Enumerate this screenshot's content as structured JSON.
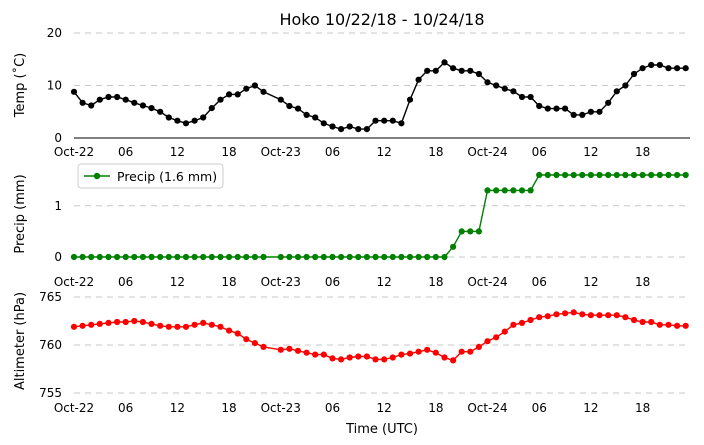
{
  "chart_data": [
    {
      "type": "line",
      "title": "Hoko 10/22/18 - 10/24/18",
      "ylabel": "Temp ($^\\circ$C)",
      "ylabel_display": "Temp (˚C)",
      "ylim": [
        0,
        20
      ],
      "yticks": [
        0,
        10,
        20
      ],
      "xtick_labels": [
        "Oct-22",
        "06",
        "12",
        "18",
        "Oct-23",
        "06",
        "12",
        "18",
        "Oct-24",
        "06",
        "12",
        "18"
      ],
      "grid": "horizontal dashed",
      "series": [
        {
          "color": "#000000",
          "x_hours": [
            0,
            1,
            2,
            3,
            4,
            5,
            6,
            7,
            8,
            9,
            10,
            11,
            12,
            13,
            14,
            15,
            16,
            17,
            18,
            19,
            20,
            21,
            22,
            24,
            25,
            26,
            27,
            28,
            29,
            30,
            31,
            32,
            33,
            34,
            35,
            36,
            37,
            38,
            39,
            40,
            41,
            42,
            43,
            44,
            45,
            46,
            47,
            48,
            49,
            50,
            51,
            52,
            53,
            54,
            55,
            56,
            57,
            58,
            59,
            60,
            61,
            62,
            63,
            64,
            65,
            66,
            67,
            68,
            69,
            70,
            71
          ],
          "values": [
            8.8,
            6.7,
            6.2,
            7.3,
            7.8,
            7.8,
            7.3,
            6.7,
            6.2,
            5.7,
            5.0,
            3.9,
            3.3,
            2.8,
            3.3,
            3.9,
            5.7,
            7.3,
            8.3,
            8.3,
            9.4,
            10.0,
            8.8,
            7.3,
            6.1,
            5.6,
            4.4,
            3.9,
            2.8,
            2.2,
            1.7,
            2.2,
            1.7,
            1.7,
            3.3,
            3.3,
            3.3,
            2.8,
            7.3,
            11.1,
            12.8,
            12.8,
            14.4,
            13.3,
            12.8,
            12.8,
            12.2,
            10.6,
            10.0,
            9.4,
            8.9,
            7.8,
            7.8,
            6.1,
            5.6,
            5.6,
            5.6,
            4.4,
            4.4,
            5.0,
            5.0,
            6.7,
            8.9,
            10.0,
            12.2,
            13.3,
            13.9,
            13.9,
            13.3,
            13.3,
            13.3
          ]
        }
      ]
    },
    {
      "type": "line",
      "ylabel": "Precip (mm)",
      "ylim": [
        0,
        1.6
      ],
      "yticks": [
        0,
        1
      ],
      "xtick_labels": [
        "Oct-22",
        "06",
        "12",
        "18",
        "Oct-23",
        "06",
        "12",
        "18",
        "Oct-24",
        "06",
        "12",
        "18"
      ],
      "grid": "horizontal dashed",
      "legend": "upper-left",
      "series": [
        {
          "name": "Precip (1.6 mm)",
          "color": "#008000",
          "x_hours": [
            0,
            1,
            2,
            3,
            4,
            5,
            6,
            7,
            8,
            9,
            10,
            11,
            12,
            13,
            14,
            15,
            16,
            17,
            18,
            19,
            20,
            21,
            22,
            24,
            25,
            26,
            27,
            28,
            29,
            30,
            31,
            32,
            33,
            34,
            35,
            36,
            37,
            38,
            39,
            40,
            41,
            42,
            43,
            44,
            45,
            46,
            47,
            48,
            49,
            50,
            51,
            52,
            53,
            54,
            55,
            56,
            57,
            58,
            59,
            60,
            61,
            62,
            63,
            64,
            65,
            66,
            67,
            68,
            69,
            70,
            71
          ],
          "values": [
            0,
            0,
            0,
            0,
            0,
            0,
            0,
            0,
            0,
            0,
            0,
            0,
            0,
            0,
            0,
            0,
            0,
            0,
            0,
            0,
            0,
            0,
            0,
            0,
            0,
            0,
            0,
            0,
            0,
            0,
            0,
            0,
            0,
            0,
            0,
            0,
            0,
            0,
            0,
            0,
            0,
            0,
            0,
            0.2,
            0.5,
            0.5,
            0.5,
            1.3,
            1.3,
            1.3,
            1.3,
            1.3,
            1.3,
            1.6,
            1.6,
            1.6,
            1.6,
            1.6,
            1.6,
            1.6,
            1.6,
            1.6,
            1.6,
            1.6,
            1.6,
            1.6,
            1.6,
            1.6,
            1.6,
            1.6,
            1.6
          ]
        }
      ]
    },
    {
      "type": "line",
      "ylabel": "Altimeter (hPa)",
      "xlabel": "Time (UTC)",
      "ylim": [
        755,
        765
      ],
      "yticks": [
        755,
        760,
        765
      ],
      "xtick_labels": [
        "Oct-22",
        "06",
        "12",
        "18",
        "Oct-23",
        "06",
        "12",
        "18",
        "Oct-24",
        "06",
        "12",
        "18"
      ],
      "grid": "horizontal dashed",
      "series": [
        {
          "color": "#ff0000",
          "x_hours": [
            0,
            1,
            2,
            3,
            4,
            5,
            6,
            7,
            8,
            9,
            10,
            11,
            12,
            13,
            14,
            15,
            16,
            17,
            18,
            19,
            20,
            21,
            22,
            24,
            25,
            26,
            27,
            28,
            29,
            30,
            31,
            32,
            33,
            34,
            35,
            36,
            37,
            38,
            39,
            40,
            41,
            42,
            43,
            44,
            45,
            46,
            47,
            48,
            49,
            50,
            51,
            52,
            53,
            54,
            55,
            56,
            57,
            58,
            59,
            60,
            61,
            62,
            63,
            64,
            65,
            66,
            67,
            68,
            69,
            70,
            71
          ],
          "values": [
            761.9,
            762.0,
            762.1,
            762.2,
            762.3,
            762.4,
            762.4,
            762.5,
            762.4,
            762.2,
            762.0,
            761.9,
            761.9,
            761.9,
            762.1,
            762.3,
            762.1,
            761.9,
            761.5,
            761.2,
            760.6,
            760.2,
            759.8,
            759.5,
            759.6,
            759.4,
            759.2,
            759.0,
            759.0,
            758.6,
            758.5,
            758.7,
            758.8,
            758.8,
            758.5,
            758.5,
            758.7,
            759.0,
            759.1,
            759.3,
            759.5,
            759.2,
            758.7,
            758.4,
            759.3,
            759.3,
            759.8,
            760.4,
            760.8,
            761.4,
            762.1,
            762.3,
            762.6,
            762.9,
            763.0,
            763.2,
            763.3,
            763.4,
            763.2,
            763.1,
            763.1,
            763.1,
            763.1,
            762.9,
            762.6,
            762.4,
            762.4,
            762.1,
            762.1,
            762.0,
            762.0
          ]
        }
      ]
    }
  ]
}
